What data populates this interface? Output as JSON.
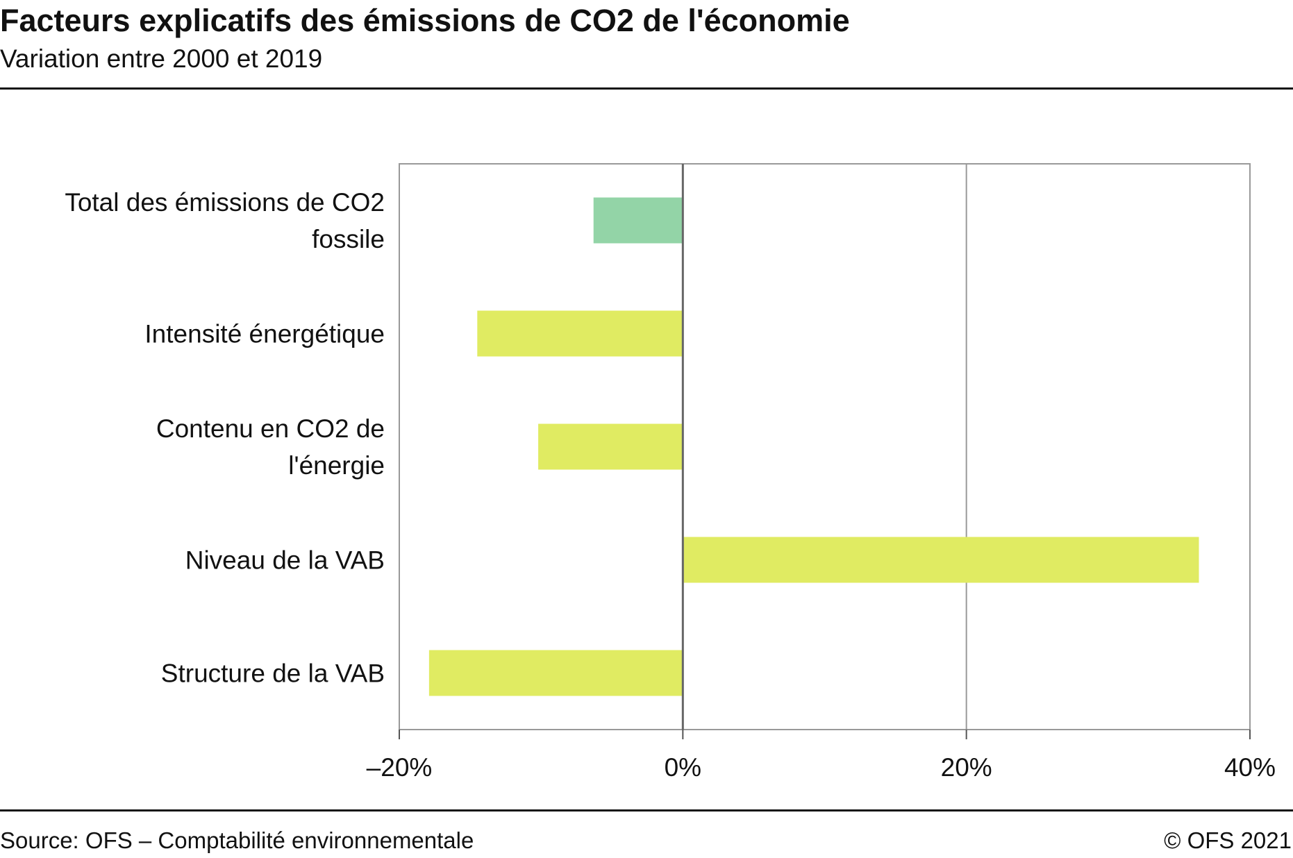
{
  "header": {
    "title": "Facteurs explicatifs des émissions de CO2 de l'économie",
    "subtitle": "Variation entre 2000 et 2019"
  },
  "footer": {
    "source": "Source: OFS – Comptabilité environnementale",
    "copyright": "© OFS 2021"
  },
  "chart_data": {
    "type": "bar",
    "orientation": "horizontal",
    "title": "Facteurs explicatifs des émissions de CO2 de l'économie",
    "subtitle": "Variation entre 2000 et 2019",
    "categories": [
      [
        "Total des émissions de CO2",
        "fossile"
      ],
      [
        "Intensité énergétique"
      ],
      [
        "Contenu en CO2 de",
        "l'énergie"
      ],
      [
        "Niveau de la VAB"
      ],
      [
        "Structure de la VAB"
      ]
    ],
    "values": [
      -6.3,
      -14.5,
      -10.2,
      36.4,
      -17.9
    ],
    "colors": [
      "#93d4a7",
      "#e0eb62",
      "#e0eb62",
      "#e0eb62",
      "#e0eb62"
    ],
    "xlim": [
      -20,
      40
    ],
    "xticks": [
      -20,
      0,
      20,
      40
    ],
    "xtick_labels": [
      "–20%",
      "0%",
      "20%",
      "40%"
    ],
    "xlabel": "",
    "ylabel": "",
    "grid": "vertical",
    "legend": "none"
  }
}
